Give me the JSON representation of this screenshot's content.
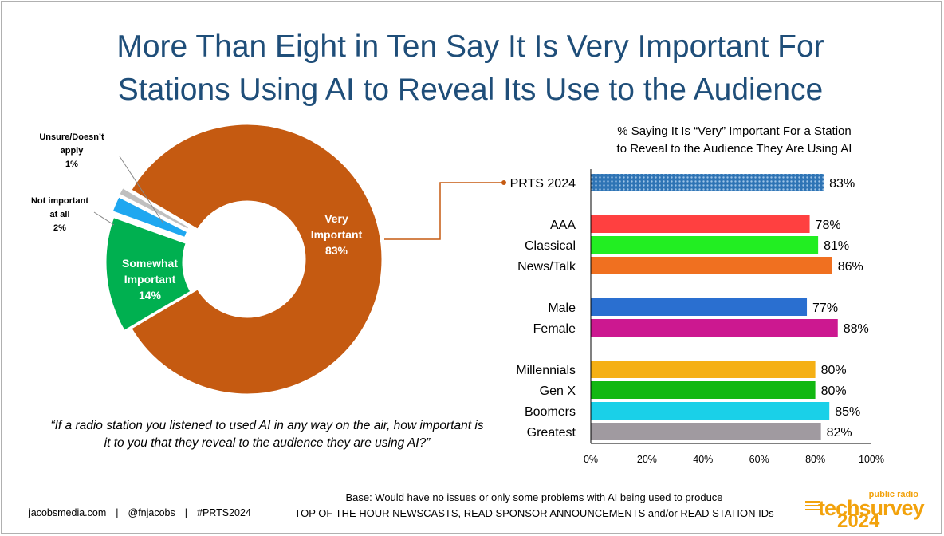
{
  "title": {
    "line1": "More Than Eight in Ten Say It Is Very Important For",
    "line2": "Stations Using AI to Reveal Its Use to the Audience"
  },
  "quote": "“If a radio station you listened to used AI in any way on the air, how important is it to you that they reveal to the audience they are using AI?”",
  "footer": {
    "site": "jacobsmedia.com",
    "handle": "@fnjacobs",
    "tag": "#PRTS2024",
    "base_line1": "Base: Would have no issues or only some problems with AI being used to produce",
    "base_line2": "TOP OF THE HOUR NEWSCASTS, READ SPONSOR ANNOUNCEMENTS and/or READ STATION IDs"
  },
  "logo": {
    "small": "public radio",
    "brand": "techsurvey",
    "year": "2024"
  },
  "chart_data": [
    {
      "type": "pie",
      "variant": "donut",
      "slices": [
        {
          "label_lines": [
            "Very",
            "Important"
          ],
          "value": 83,
          "value_label": "83%",
          "color": "#c55a11"
        },
        {
          "label_lines": [
            "Somewhat",
            "Important"
          ],
          "value": 14,
          "value_label": "14%",
          "color": "#00b050"
        },
        {
          "label_lines": [
            "Not important",
            "at all"
          ],
          "value": 2,
          "value_label": "2%",
          "color": "#1fa7f0"
        },
        {
          "label_lines": [
            "Unsure/Doesn’t",
            "apply"
          ],
          "value": 1,
          "value_label": "1%",
          "color": "#bfbfbf"
        }
      ]
    },
    {
      "type": "bar",
      "orientation": "horizontal",
      "title_lines": [
        "% Saying It Is “Very” Important For a Station",
        "to Reveal to the Audience They Are Using AI"
      ],
      "xlim": [
        0,
        100
      ],
      "xticks": [
        "0%",
        "20%",
        "40%",
        "60%",
        "80%",
        "100%"
      ],
      "groups": [
        {
          "bars": [
            {
              "label": "PRTS 2024",
              "value": 83,
              "value_label": "83%",
              "color": "#2e74b5",
              "pattern": "dots"
            }
          ]
        },
        {
          "bars": [
            {
              "label": "AAA",
              "value": 78,
              "value_label": "78%",
              "color": "#ff4040"
            },
            {
              "label": "Classical",
              "value": 81,
              "value_label": "81%",
              "color": "#22ee22"
            },
            {
              "label": "News/Talk",
              "value": 86,
              "value_label": "86%",
              "color": "#f07020"
            }
          ]
        },
        {
          "bars": [
            {
              "label": "Male",
              "value": 77,
              "value_label": "77%",
              "color": "#2a6fd0"
            },
            {
              "label": "Female",
              "value": 88,
              "value_label": "88%",
              "color": "#cc1890"
            }
          ]
        },
        {
          "bars": [
            {
              "label": "Millennials",
              "value": 80,
              "value_label": "80%",
              "color": "#f5b015"
            },
            {
              "label": "Gen X",
              "value": 80,
              "value_label": "80%",
              "color": "#12b812"
            },
            {
              "label": "Boomers",
              "value": 85,
              "value_label": "85%",
              "color": "#1ad0e8"
            },
            {
              "label": "Greatest",
              "value": 82,
              "value_label": "82%",
              "color": "#a09aa0"
            }
          ]
        }
      ]
    }
  ]
}
